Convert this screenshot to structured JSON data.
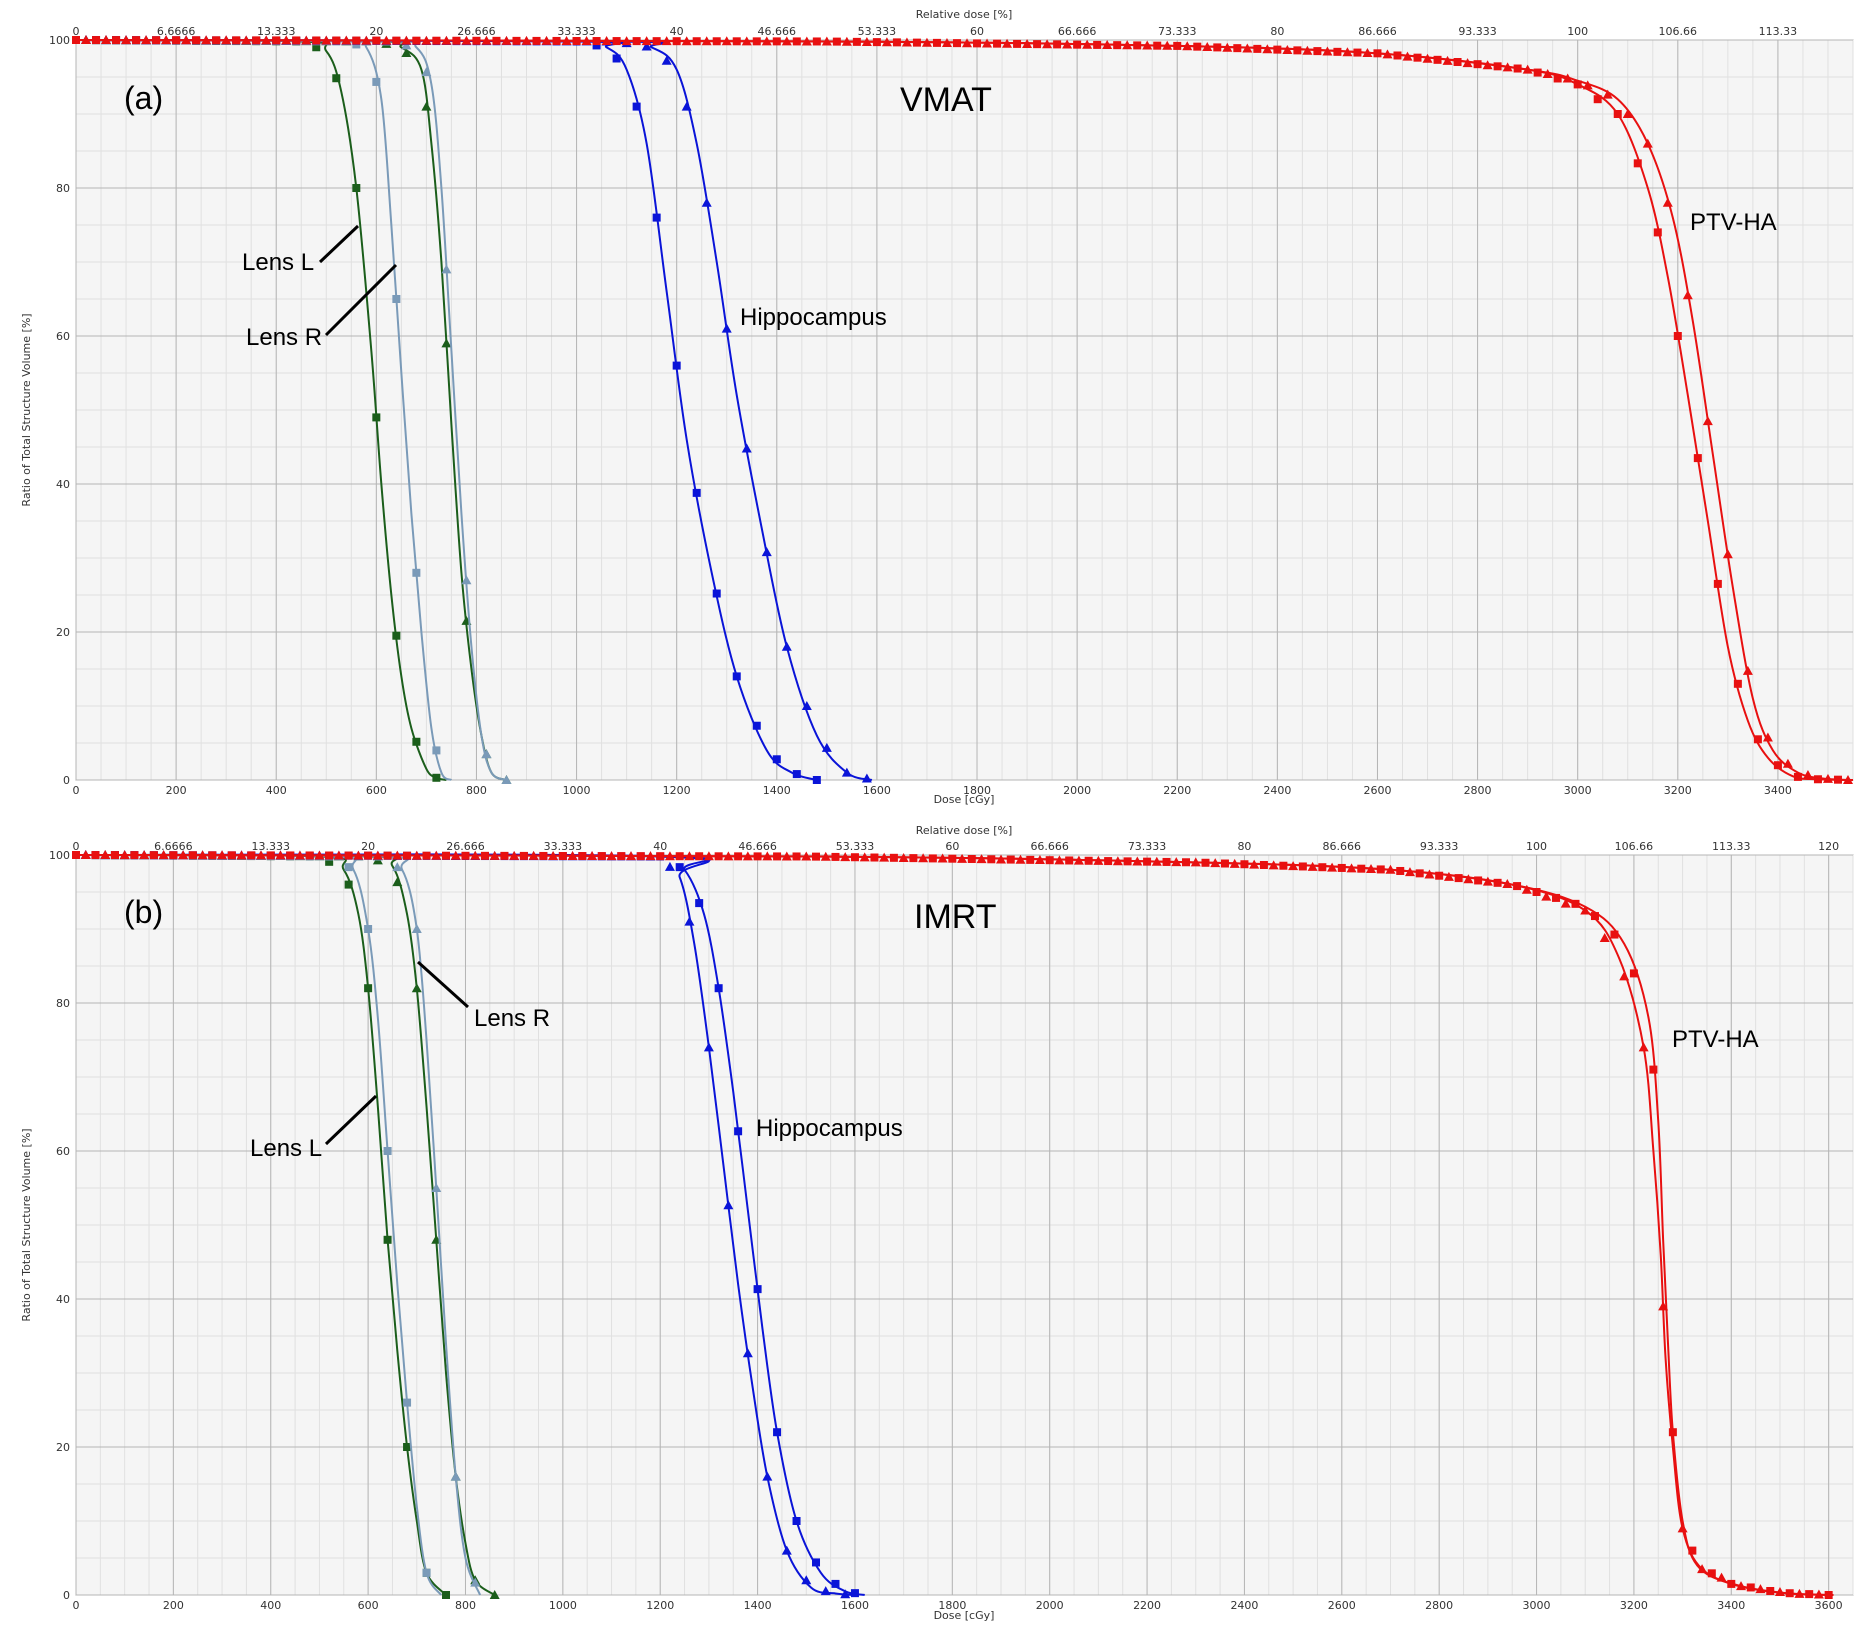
{
  "chart_data": [
    {
      "type": "line",
      "panel_label": "(a)",
      "mode_label": "VMAT",
      "xlabel": "Dose [cGy]",
      "x2label": "Relative dose [%]",
      "ylabel": "Ratio of Total Structure Volume [%]",
      "xlim": [
        0,
        3550
      ],
      "ylim": [
        0,
        100
      ],
      "x_ticks": [
        0,
        200,
        400,
        600,
        800,
        1000,
        1200,
        1400,
        1600,
        1800,
        2000,
        2200,
        2400,
        2600,
        2800,
        3000,
        3200,
        3400
      ],
      "y_ticks": [
        0,
        20,
        40,
        60,
        80,
        100
      ],
      "x2_tick_labels": [
        "0",
        "6.6666",
        "13.333",
        "20",
        "26.666",
        "33.333",
        "40",
        "46.666",
        "53.333",
        "60",
        "66.666",
        "73.333",
        "80",
        "86.666",
        "93.333",
        "100",
        "106.66",
        "113.33"
      ],
      "series": [
        {
          "structure": "Lens L",
          "marker": "square",
          "color": "#1b5e1b",
          "x": [
            0,
            450,
            500,
            530,
            560,
            590,
            610,
            630,
            650,
            670,
            700,
            720,
            740
          ],
          "y": [
            100,
            99.8,
            98.5,
            93,
            80,
            58,
            40,
            25,
            14,
            7,
            1.5,
            0.3,
            0
          ]
        },
        {
          "structure": "Lens L",
          "marker": "triangle",
          "color": "#1b5e1b",
          "x": [
            0,
            600,
            650,
            690,
            710,
            730,
            750,
            770,
            790,
            810,
            830,
            860
          ],
          "y": [
            100,
            99.8,
            99,
            96,
            86,
            70,
            48,
            28,
            15,
            6,
            1,
            0
          ]
        },
        {
          "structure": "Lens R",
          "marker": "square",
          "color": "#7a9ab8",
          "x": [
            0,
            540,
            580,
            610,
            630,
            650,
            670,
            690,
            710,
            730,
            750
          ],
          "y": [
            100,
            99.8,
            99,
            92,
            75,
            55,
            36,
            20,
            7,
            1,
            0
          ]
        },
        {
          "structure": "Lens R",
          "marker": "triangle",
          "color": "#7a9ab8",
          "x": [
            0,
            620,
            680,
            710,
            730,
            750,
            770,
            790,
            810,
            830,
            860
          ],
          "y": [
            100,
            99.8,
            99,
            94,
            80,
            58,
            36,
            18,
            6,
            1,
            0
          ]
        },
        {
          "structure": "Hippocampus",
          "marker": "square",
          "color": "#0a14d8",
          "x": [
            0,
            1000,
            1060,
            1100,
            1140,
            1180,
            1220,
            1270,
            1320,
            1380,
            1430,
            1480
          ],
          "y": [
            100,
            99.8,
            99,
            96,
            86,
            66,
            46,
            28,
            14,
            4,
            1,
            0
          ]
        },
        {
          "structure": "Hippocampus",
          "marker": "triangle",
          "color": "#0a14d8",
          "x": [
            0,
            1080,
            1150,
            1200,
            1240,
            1280,
            1320,
            1370,
            1420,
            1480,
            1540,
            1590
          ],
          "y": [
            100,
            99.8,
            99,
            96,
            86,
            70,
            52,
            34,
            18,
            6,
            1,
            0
          ]
        },
        {
          "structure": "PTV-HA",
          "marker": "square",
          "color": "#e81010",
          "x": [
            0,
            1500,
            2200,
            2600,
            2900,
            3000,
            3080,
            3140,
            3180,
            3220,
            3260,
            3300,
            3340,
            3380,
            3430,
            3480,
            3550
          ],
          "y": [
            100,
            99.8,
            99.2,
            98.2,
            96,
            94,
            90,
            80,
            68,
            52,
            35,
            18,
            8,
            3,
            0.5,
            0.1,
            0
          ]
        },
        {
          "structure": "PTV-HA",
          "marker": "triangle",
          "color": "#e81010",
          "x": [
            0,
            1500,
            2200,
            2600,
            2900,
            3000,
            3080,
            3140,
            3190,
            3230,
            3270,
            3310,
            3350,
            3390,
            3440,
            3490,
            3540
          ],
          "y": [
            100,
            99.8,
            99.2,
            98.2,
            96,
            94.5,
            92,
            86,
            76,
            62,
            44,
            26,
            11,
            4,
            1,
            0.2,
            0
          ]
        }
      ],
      "annotations": [
        "Lens L",
        "Lens R",
        "Hippocampus",
        "PTV-HA"
      ]
    },
    {
      "type": "line",
      "panel_label": "(b)",
      "mode_label": "IMRT",
      "xlabel": "Dose [cGy]",
      "x2label": "Relative dose [%]",
      "ylabel": "Ratio of Total Structure Volume [%]",
      "xlim": [
        0,
        3650
      ],
      "ylim": [
        0,
        100
      ],
      "x_ticks": [
        0,
        200,
        400,
        600,
        800,
        1000,
        1200,
        1400,
        1600,
        1800,
        2000,
        2200,
        2400,
        2600,
        2800,
        3000,
        3200,
        3400,
        3600
      ],
      "y_ticks": [
        0,
        20,
        40,
        60,
        80,
        100
      ],
      "x2_tick_labels": [
        "0",
        "6.6666",
        "13.333",
        "20",
        "26.666",
        "33.333",
        "40",
        "46.666",
        "53.333",
        "60",
        "66.666",
        "73.333",
        "80",
        "86.666",
        "93.333",
        "100",
        "106.66",
        "113.33",
        "120"
      ],
      "series": [
        {
          "structure": "Lens L",
          "marker": "square",
          "color": "#1b5e1b",
          "x": [
            0,
            500,
            550,
            580,
            600,
            620,
            640,
            660,
            680,
            700,
            720,
            760
          ],
          "y": [
            100,
            99.8,
            98,
            92,
            82,
            66,
            48,
            33,
            20,
            10,
            3,
            0
          ]
        },
        {
          "structure": "Lens L",
          "marker": "triangle",
          "color": "#1b5e1b",
          "x": [
            0,
            600,
            650,
            680,
            700,
            720,
            740,
            760,
            780,
            800,
            820,
            860
          ],
          "y": [
            100,
            99.8,
            98.5,
            92,
            82,
            66,
            48,
            30,
            16,
            7,
            2,
            0
          ]
        },
        {
          "structure": "Lens R",
          "marker": "square",
          "color": "#7a9ab8",
          "x": [
            0,
            520,
            570,
            600,
            620,
            640,
            660,
            680,
            700,
            720,
            750
          ],
          "y": [
            100,
            99.8,
            98,
            90,
            78,
            60,
            42,
            26,
            12,
            3,
            0
          ]
        },
        {
          "structure": "Lens R",
          "marker": "triangle",
          "color": "#7a9ab8",
          "x": [
            0,
            620,
            670,
            700,
            720,
            740,
            760,
            780,
            800,
            830
          ],
          "y": [
            100,
            99.8,
            98,
            90,
            75,
            55,
            34,
            16,
            5,
            0
          ]
        },
        {
          "structure": "Hippocampus",
          "marker": "square",
          "color": "#0a14d8",
          "x": [
            0,
            1200,
            1250,
            1290,
            1320,
            1350,
            1380,
            1410,
            1440,
            1480,
            1530,
            1580,
            1620
          ],
          "y": [
            100,
            99.8,
            98,
            92,
            82,
            68,
            52,
            36,
            22,
            10,
            3,
            0.5,
            0
          ]
        },
        {
          "structure": "Hippocampus",
          "marker": "triangle",
          "color": "#0a14d8",
          "x": [
            0,
            1200,
            1240,
            1270,
            1300,
            1330,
            1360,
            1390,
            1420,
            1460,
            1510,
            1560,
            1600
          ],
          "y": [
            100,
            99.8,
            97,
            88,
            74,
            58,
            42,
            28,
            16,
            6,
            1,
            0.2,
            0
          ]
        },
        {
          "structure": "PTV-HA",
          "marker": "square",
          "color": "#e81010",
          "x": [
            0,
            1500,
            2300,
            2700,
            2950,
            3100,
            3180,
            3230,
            3250,
            3260,
            3270,
            3280,
            3300,
            3330,
            3400,
            3500,
            3600
          ],
          "y": [
            100,
            99.8,
            99,
            98,
            96,
            93,
            88,
            78,
            64,
            48,
            34,
            22,
            10,
            4,
            1.5,
            0.3,
            0
          ]
        },
        {
          "structure": "PTV-HA",
          "marker": "triangle",
          "color": "#e81010",
          "x": [
            0,
            1500,
            2300,
            2700,
            2950,
            3100,
            3170,
            3220,
            3240,
            3255,
            3265,
            3280,
            3300,
            3340,
            3420,
            3520,
            3610
          ],
          "y": [
            100,
            99.8,
            99,
            98,
            96,
            92.5,
            86,
            74,
            60,
            46,
            32,
            20,
            9,
            3.5,
            1.2,
            0.2,
            0
          ]
        }
      ],
      "annotations": [
        "Lens R",
        "Lens L",
        "Hippocampus",
        "PTV-HA"
      ]
    }
  ]
}
